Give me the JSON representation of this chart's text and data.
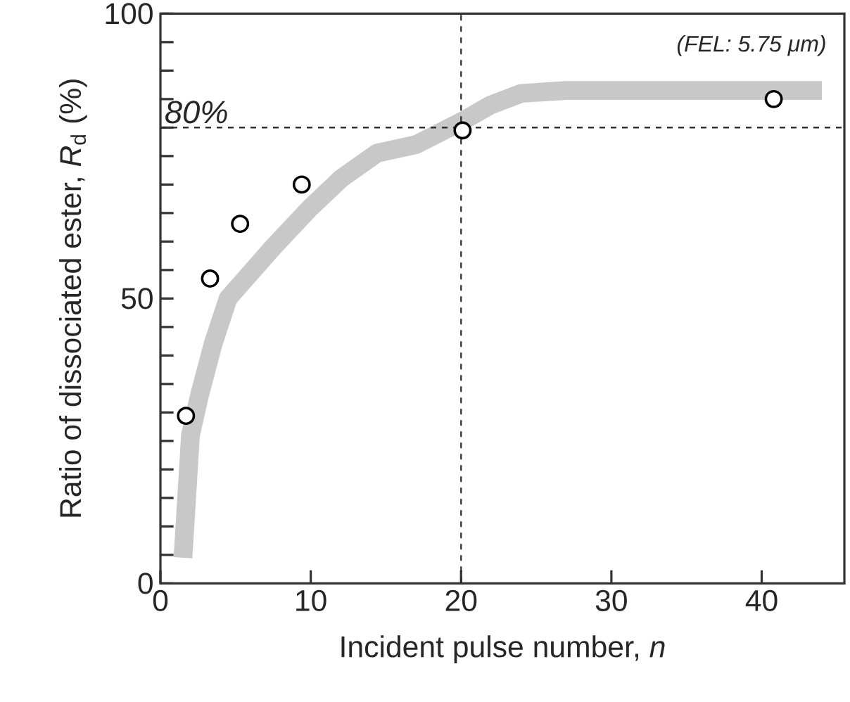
{
  "chart_data": {
    "type": "scatter",
    "xlabel": "Incident pulse number, *n*",
    "ylabel": "Ratio of dissociated ester, *R*$_{d}$ (%)",
    "annotations": [
      "(FEL: 5.75 μm)"
    ],
    "xlim": [
      0,
      45.5
    ],
    "ylim": [
      0,
      100
    ],
    "xticks": [
      0,
      10,
      20,
      30,
      40
    ],
    "yticks": [
      0,
      {
        "value": 5,
        "label": null
      },
      {
        "value": 10,
        "label": null
      },
      {
        "value": 15,
        "label": null
      },
      {
        "value": 20,
        "label": null
      },
      {
        "value": 25,
        "label": null
      },
      {
        "value": 30,
        "label": null
      },
      {
        "value": 35,
        "label": null
      },
      {
        "value": 40,
        "label": null
      },
      {
        "value": 45,
        "label": null
      },
      50,
      {
        "value": 55,
        "label": null
      },
      {
        "value": 60,
        "label": null
      },
      {
        "value": 65,
        "label": null
      },
      {
        "value": 70,
        "label": null
      },
      {
        "value": 75,
        "label": null
      },
      {
        "value": 80,
        "label": null
      },
      {
        "value": 85,
        "label": null
      },
      {
        "value": 90,
        "label": null
      },
      {
        "value": 95,
        "label": null
      },
      100
    ],
    "grid": false,
    "series": [
      {
        "type": "line",
        "marker": "none",
        "color": "#c8c8c8",
        "x": [
          1.5,
          2,
          2.6,
          3.5,
          4.5,
          5.5,
          7.5,
          10,
          12,
          14.4,
          17,
          20,
          22,
          24,
          27,
          32,
          38,
          44
        ],
        "values": [
          4.5,
          26,
          33,
          42,
          50,
          53,
          59,
          66,
          71,
          75.5,
          77,
          81,
          84,
          86,
          86.5,
          86.5,
          86.5,
          86.5
        ]
      },
      {
        "marker": "circle",
        "color": "#000000",
        "x": [
          1.7,
          3.3,
          5.3,
          9.4,
          20.1,
          40.8
        ],
        "values": [
          29.4,
          53.5,
          63.1,
          70,
          79.5,
          85
        ]
      }
    ],
    "ref_lines": [
      {
        "axis": "x",
        "value": 20,
        "line_style": "dashed"
      },
      {
        "axis": "y",
        "value": 80,
        "label": "80%",
        "line_style": "dashed"
      }
    ]
  }
}
